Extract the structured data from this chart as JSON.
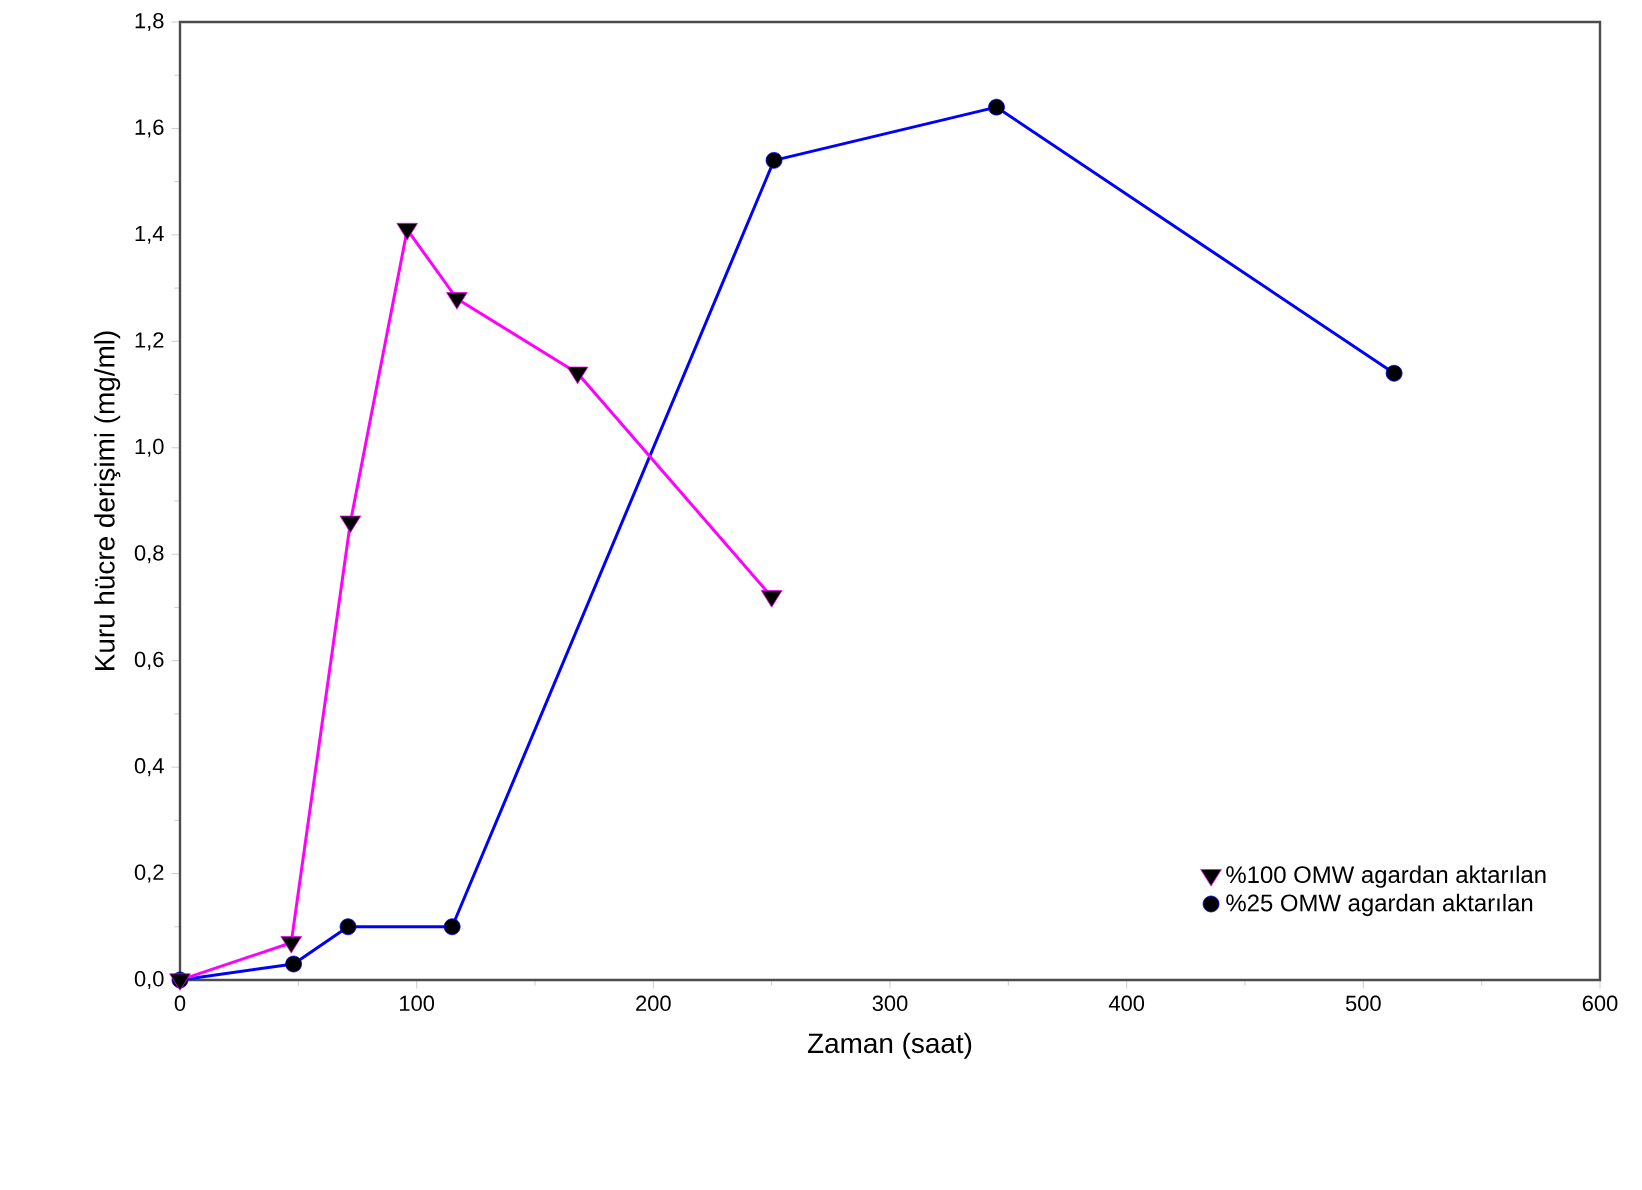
{
  "chart_data": {
    "type": "line",
    "xlabel": "Zaman (saat)",
    "ylabel": "Kuru hücre derişimi (mg/ml)",
    "xlim": [
      0,
      600
    ],
    "xticks": [
      0,
      100,
      200,
      300,
      400,
      500,
      600
    ],
    "ylim": [
      0,
      1.8
    ],
    "yticks": [
      {
        "value": 0,
        "label": "0,0"
      },
      {
        "value": 0.2,
        "label": "0,2"
      },
      {
        "value": 0.4,
        "label": "0,4"
      },
      {
        "value": 0.6,
        "label": "0,6"
      },
      {
        "value": 0.8,
        "label": "0,8"
      },
      {
        "value": 1.0,
        "label": "1,0"
      },
      {
        "value": 1.2,
        "label": "1,2"
      },
      {
        "value": 1.4,
        "label": "1,4"
      },
      {
        "value": 1.6,
        "label": "1,6"
      },
      {
        "value": 1.8,
        "label": "1,8"
      }
    ],
    "legend": "bottom right",
    "grid": false,
    "line_style": "solid",
    "series": [
      {
        "name": "%100 OMW agardan aktarılan",
        "color": "#ff00ff",
        "marker": "triangle",
        "x": [
          0,
          47,
          72,
          96,
          117,
          168,
          250
        ],
        "values": [
          0,
          0.07,
          0.86,
          1.41,
          1.28,
          1.14,
          0.72
        ]
      },
      {
        "name": "%25 OMW agardan aktarılan",
        "color": "#0000ff",
        "marker": "circle",
        "x": [
          0,
          48,
          71,
          115,
          251,
          345,
          513
        ],
        "values": [
          0,
          0.03,
          0.1,
          0.1,
          1.54,
          1.64,
          1.14
        ]
      }
    ]
  }
}
